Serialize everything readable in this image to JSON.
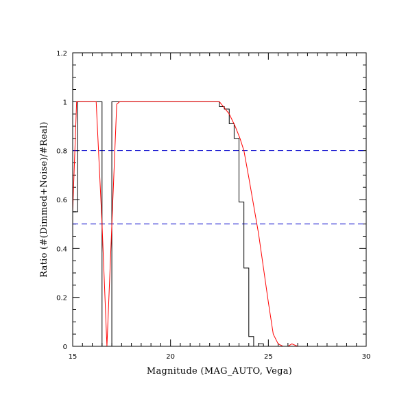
{
  "chart_data": {
    "type": "line",
    "title": "",
    "xlabel": "Magnitude (MAG_AUTO, Vega)",
    "ylabel": "Ratio (#(Dimmed+Noise)/#Real)",
    "xlim": [
      15,
      30
    ],
    "ylim": [
      0,
      1.2
    ],
    "x_major_ticks": [
      15,
      20,
      25,
      30
    ],
    "x_minor_step": 0.5,
    "y_major_ticks": [
      0,
      0.2,
      0.4,
      0.6,
      0.8,
      1.0
    ],
    "y_minor_step": 0.05,
    "x_tick_labels": [
      "15",
      "20",
      "25",
      "30"
    ],
    "y_tick_labels": [
      "0",
      "0.2",
      "0.4",
      "0.6",
      "0.8",
      "1",
      "1.2"
    ],
    "grid": false,
    "series": [
      {
        "style": "step-histogram",
        "color": "#000000",
        "bin_width": 0.25,
        "bin_start": 15.0,
        "values": [
          0.55,
          1.0,
          1.0,
          1.0,
          1.0,
          1.0,
          0.0,
          0.0,
          1.0,
          1.0,
          1.0,
          1.0,
          1.0,
          1.0,
          1.0,
          1.0,
          1.0,
          1.0,
          1.0,
          1.0,
          1.0,
          1.0,
          1.0,
          1.0,
          1.0,
          1.0,
          1.0,
          1.0,
          1.0,
          1.0,
          0.98,
          0.97,
          0.91,
          0.85,
          0.59,
          0.32,
          0.04,
          0.0,
          0.01,
          0.0,
          0.0,
          0.0,
          0.0,
          0.0,
          0.0,
          0.0,
          0.0,
          0.0,
          0.0,
          0.0,
          0.0,
          0.0,
          0.0,
          0.0,
          0.0,
          0.0,
          0.0,
          0.0,
          0.0,
          0.0
        ]
      },
      {
        "style": "line",
        "color": "#ff0000",
        "x": [
          15.0,
          15.2,
          16.2,
          16.5,
          16.75,
          17.25,
          17.4,
          22.5,
          22.7,
          23.0,
          23.3,
          23.55,
          23.75,
          24.0,
          24.5,
          25.0,
          25.25,
          25.5,
          25.75,
          26.0,
          26.2,
          26.5,
          30.0
        ],
        "y": [
          0.55,
          1.0,
          1.0,
          0.5,
          0.0,
          0.99,
          1.0,
          1.0,
          0.98,
          0.95,
          0.9,
          0.85,
          0.8,
          0.69,
          0.46,
          0.18,
          0.05,
          0.01,
          0.0,
          0.0,
          0.01,
          0.0,
          0.0
        ]
      }
    ],
    "reference_lines": [
      {
        "orientation": "horizontal",
        "y": 0.8,
        "color": "#0000cc",
        "style": "dashed"
      },
      {
        "orientation": "horizontal",
        "y": 0.5,
        "color": "#0000cc",
        "style": "dashed"
      }
    ]
  }
}
